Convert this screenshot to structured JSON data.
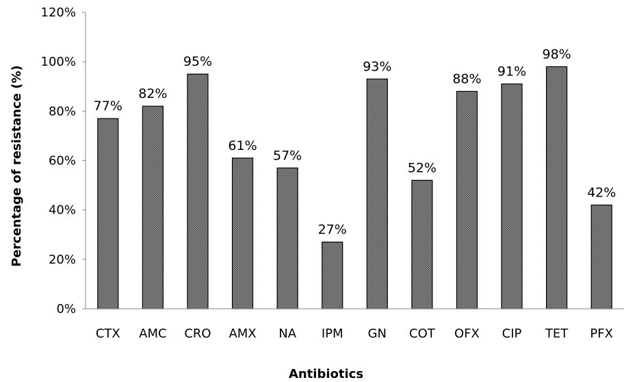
{
  "chart_data": {
    "type": "bar",
    "title": "",
    "xlabel": "Antibiotics",
    "ylabel": "Percentage of resistance (%)",
    "ylim": [
      0,
      120
    ],
    "y_ticks": [
      "0%",
      "20%",
      "40%",
      "60%",
      "80%",
      "100%",
      "120%"
    ],
    "categories": [
      "CTX",
      "AMC",
      "CRO",
      "AMX",
      "NA",
      "IPM",
      "GN",
      "COT",
      "OFX",
      "CIP",
      "TET",
      "PFX"
    ],
    "values": [
      77,
      82,
      95,
      61,
      57,
      27,
      93,
      52,
      88,
      91,
      98,
      42
    ],
    "data_labels": [
      "77%",
      "82%",
      "95%",
      "61%",
      "57%",
      "27%",
      "93%",
      "52%",
      "88%",
      "91%",
      "98%",
      "42%"
    ],
    "grid": false,
    "legend": "none",
    "bar_color": "#777777"
  }
}
